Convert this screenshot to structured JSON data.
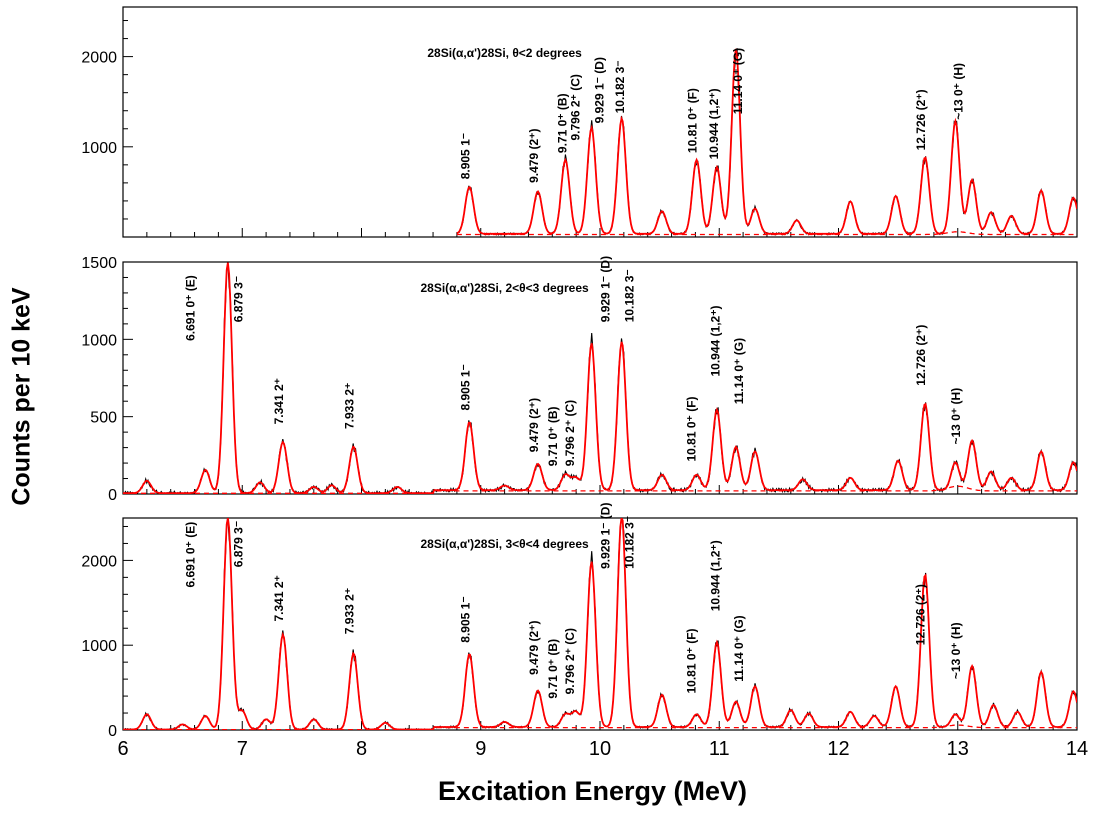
{
  "figure": {
    "ylabel": "Counts per 10 keV",
    "xlabel": "Excitation Energy (MeV)"
  },
  "chart_data": [
    {
      "type": "line",
      "title": "28Si(α,α')28Si, θ<2 degrees",
      "xlim": [
        6,
        14
      ],
      "ylim": [
        0,
        2550
      ],
      "xticks": [
        6,
        7,
        8,
        9,
        10,
        11,
        12,
        13,
        14
      ],
      "yticks": [
        1000,
        2000
      ],
      "series": [
        {
          "color": "#000000",
          "style": "data",
          "peaks": [
            [
              8.905,
              520
            ],
            [
              9.479,
              470
            ],
            [
              9.71,
              820
            ],
            [
              9.929,
              1180
            ],
            [
              10.182,
              1280
            ],
            [
              10.52,
              250
            ],
            [
              10.81,
              820
            ],
            [
              10.98,
              740
            ],
            [
              11.14,
              2050
            ],
            [
              11.3,
              280
            ],
            [
              11.65,
              150
            ],
            [
              12.1,
              360
            ],
            [
              12.48,
              420
            ],
            [
              12.726,
              850
            ],
            [
              12.98,
              1250
            ],
            [
              13.12,
              600
            ],
            [
              13.28,
              240
            ],
            [
              13.45,
              200
            ],
            [
              13.7,
              480
            ],
            [
              13.97,
              400
            ]
          ],
          "baseline_start": 8.8
        },
        {
          "color": "#ff0000",
          "style": "fit"
        },
        {
          "color": "#ff0000",
          "style": "dashed"
        }
      ],
      "annotations": [
        {
          "label": "8.905 1⁻",
          "x": 8.905,
          "y": 640
        },
        {
          "label": "9.479 (2⁺)",
          "x": 9.479,
          "y": 600
        },
        {
          "label": "9.71 0⁺ (B)",
          "x": 9.72,
          "y": 930
        },
        {
          "label": "9.796 2⁺ (C)",
          "x": 9.83,
          "y": 1070
        },
        {
          "label": "9.929 1⁻ (D)",
          "x": 10.03,
          "y": 1260
        },
        {
          "label": "10.182 3⁻",
          "x": 10.2,
          "y": 1370
        },
        {
          "label": "10.81 0⁺ (F)",
          "x": 10.81,
          "y": 930
        },
        {
          "label": "10.944 (1,2⁺)",
          "x": 10.99,
          "y": 860
        },
        {
          "label": "11.14 0⁺ (G)",
          "x": 11.19,
          "y": 1360
        },
        {
          "label": "12.726 (2⁺)",
          "x": 12.726,
          "y": 960
        },
        {
          "label": "~13 0⁺ (H)",
          "x": 13.04,
          "y": 1300
        }
      ]
    },
    {
      "type": "line",
      "title": "28Si(α,α')28Si, 2<θ<3 degrees",
      "xlim": [
        6,
        14
      ],
      "ylim": [
        0,
        1500
      ],
      "xticks": [
        6,
        7,
        8,
        9,
        10,
        11,
        12,
        13,
        14
      ],
      "yticks": [
        0,
        500,
        1000,
        1500
      ],
      "series": [
        {
          "color": "#000000",
          "style": "data",
          "peaks": [
            [
              6.2,
              80
            ],
            [
              6.691,
              150
            ],
            [
              6.879,
              1490
            ],
            [
              7.15,
              70
            ],
            [
              7.341,
              330
            ],
            [
              7.6,
              40
            ],
            [
              7.75,
              50
            ],
            [
              7.933,
              300
            ],
            [
              8.3,
              40
            ],
            [
              8.905,
              440
            ],
            [
              9.2,
              30
            ],
            [
              9.479,
              170
            ],
            [
              9.71,
              100
            ],
            [
              9.796,
              80
            ],
            [
              9.929,
              950
            ],
            [
              10.182,
              960
            ],
            [
              10.52,
              100
            ],
            [
              10.81,
              100
            ],
            [
              10.98,
              520
            ],
            [
              11.14,
              280
            ],
            [
              11.3,
              250
            ],
            [
              11.7,
              70
            ],
            [
              12.1,
              80
            ],
            [
              12.5,
              190
            ],
            [
              12.726,
              560
            ],
            [
              12.98,
              180
            ],
            [
              13.12,
              320
            ],
            [
              13.28,
              120
            ],
            [
              13.45,
              80
            ],
            [
              13.7,
              250
            ],
            [
              13.97,
              180
            ]
          ],
          "baseline_start": 6.0
        },
        {
          "color": "#ff0000",
          "style": "fit"
        },
        {
          "color": "#ff0000",
          "style": "dashed"
        }
      ],
      "annotations": [
        {
          "label": "6.691 0⁺ (E)",
          "x": 6.6,
          "y": 990
        },
        {
          "label": "6.879 3⁻",
          "x": 7.0,
          "y": 1110
        },
        {
          "label": "7.341 2⁺",
          "x": 7.341,
          "y": 450
        },
        {
          "label": "7.933 2⁺",
          "x": 7.933,
          "y": 420
        },
        {
          "label": "8.905 1⁻",
          "x": 8.905,
          "y": 540
        },
        {
          "label": "9.479 (2⁺)",
          "x": 9.479,
          "y": 270
        },
        {
          "label": "9.71 0⁺ (B)",
          "x": 9.64,
          "y": 180
        },
        {
          "label": "9.796 2⁺ (C)",
          "x": 9.78,
          "y": 180
        },
        {
          "label": "9.929 1⁻ (D)",
          "x": 10.08,
          "y": 1110
        },
        {
          "label": "10.182 3⁻",
          "x": 10.28,
          "y": 1110
        },
        {
          "label": "10.81 0⁺ (F)",
          "x": 10.8,
          "y": 210
        },
        {
          "label": "10.944 (1,2⁺)",
          "x": 11.0,
          "y": 760
        },
        {
          "label": "11.14 0⁺ (G)",
          "x": 11.2,
          "y": 580
        },
        {
          "label": "12.726 (2⁺)",
          "x": 12.726,
          "y": 700
        },
        {
          "label": "~13 0⁺ (H)",
          "x": 13.02,
          "y": 320
        }
      ]
    },
    {
      "type": "line",
      "title": "28Si(α,α')28Si, 3<θ<4 degrees",
      "xlim": [
        6,
        14
      ],
      "ylim": [
        0,
        2500
      ],
      "xticks": [
        6,
        7,
        8,
        9,
        10,
        11,
        12,
        13,
        14
      ],
      "yticks": [
        0,
        1000,
        2000
      ],
      "series": [
        {
          "color": "#000000",
          "style": "data",
          "peaks": [
            [
              6.2,
              180
            ],
            [
              6.5,
              60
            ],
            [
              6.691,
              160
            ],
            [
              6.879,
              2500
            ],
            [
              7.0,
              220
            ],
            [
              7.2,
              120
            ],
            [
              7.341,
              1120
            ],
            [
              7.6,
              120
            ],
            [
              7.933,
              900
            ],
            [
              8.2,
              80
            ],
            [
              8.905,
              860
            ],
            [
              9.2,
              60
            ],
            [
              9.479,
              430
            ],
            [
              9.71,
              150
            ],
            [
              9.796,
              180
            ],
            [
              9.929,
              1950
            ],
            [
              10.182,
              2500
            ],
            [
              10.52,
              380
            ],
            [
              10.81,
              150
            ],
            [
              10.98,
              1000
            ],
            [
              11.14,
              300
            ],
            [
              11.3,
              480
            ],
            [
              11.6,
              200
            ],
            [
              11.75,
              160
            ],
            [
              12.1,
              180
            ],
            [
              12.3,
              130
            ],
            [
              12.48,
              480
            ],
            [
              12.726,
              1800
            ],
            [
              12.98,
              150
            ],
            [
              13.12,
              720
            ],
            [
              13.3,
              260
            ],
            [
              13.5,
              180
            ],
            [
              13.7,
              650
            ],
            [
              13.97,
              420
            ]
          ],
          "baseline_start": 6.0
        },
        {
          "color": "#ff0000",
          "style": "fit"
        },
        {
          "color": "#ff0000",
          "style": "dashed"
        }
      ],
      "annotations": [
        {
          "label": "6.691 0⁺ (E)",
          "x": 6.6,
          "y": 1680
        },
        {
          "label": "6.879 3⁻",
          "x": 7.0,
          "y": 1920
        },
        {
          "label": "7.341 2⁺",
          "x": 7.341,
          "y": 1280
        },
        {
          "label": "7.933 2⁺",
          "x": 7.933,
          "y": 1130
        },
        {
          "label": "8.905 1⁻",
          "x": 8.905,
          "y": 1030
        },
        {
          "label": "9.479 (2⁺)",
          "x": 9.479,
          "y": 650
        },
        {
          "label": "9.71 0⁺ (B)",
          "x": 9.64,
          "y": 370
        },
        {
          "label": "9.796 2⁺ (C)",
          "x": 9.78,
          "y": 420
        },
        {
          "label": "9.929 1⁻ (D)",
          "x": 10.08,
          "y": 1900
        },
        {
          "label": "10.182 3⁻",
          "x": 10.28,
          "y": 1900
        },
        {
          "label": "10.81 0⁺ (F)",
          "x": 10.8,
          "y": 430
        },
        {
          "label": "10.944 (1,2⁺)",
          "x": 11.0,
          "y": 1400
        },
        {
          "label": "11.14 0⁺ (G)",
          "x": 11.2,
          "y": 570
        },
        {
          "label": "12.726 (2⁺)",
          "x": 12.72,
          "y": 1000
        },
        {
          "label": "~13 0⁺ (H)",
          "x": 13.02,
          "y": 600
        }
      ]
    }
  ]
}
